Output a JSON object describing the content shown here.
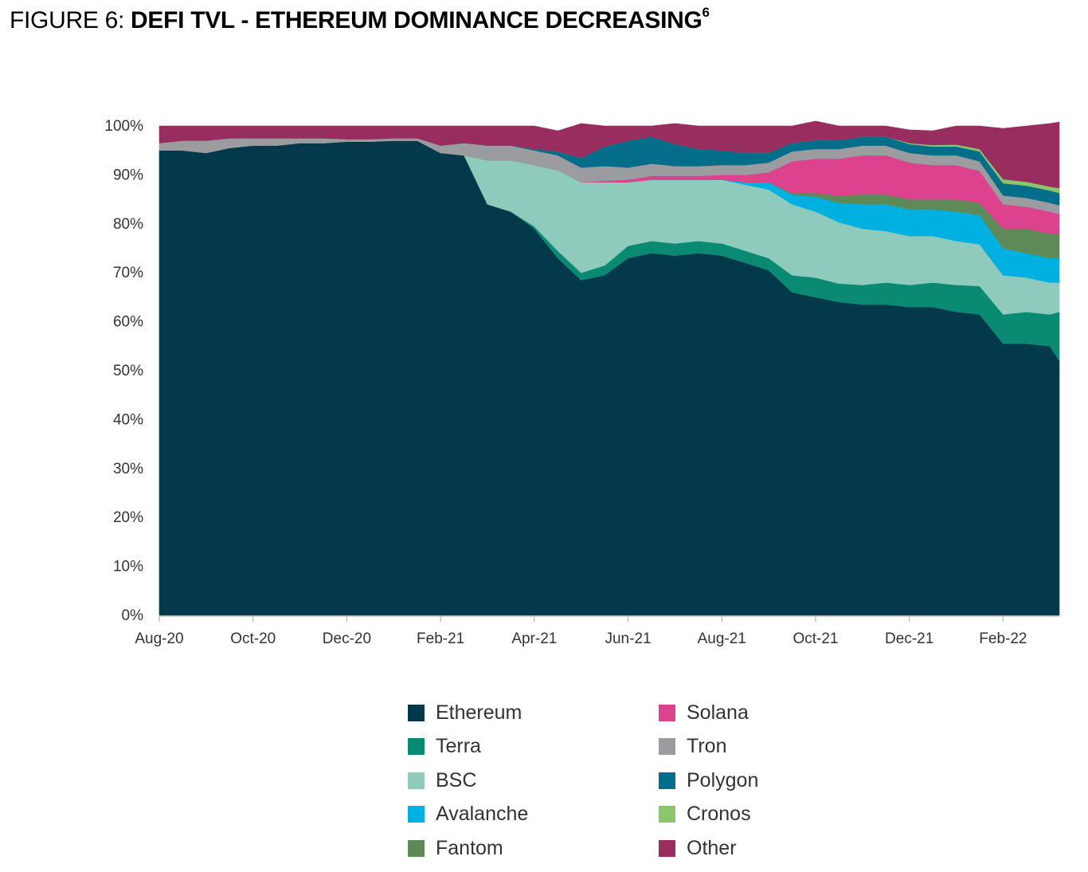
{
  "figure": {
    "prefix": "FIGURE 6: ",
    "title": "DEFI TVL - ETHEREUM DOMINANCE DECREASING",
    "footnote": "6"
  },
  "chart_data": {
    "type": "area",
    "stacked": true,
    "normalized": true,
    "title": "DEFI TVL - ETHEREUM DOMINANCE DECREASING",
    "ylabel": "",
    "xlabel": "",
    "ylim": [
      0,
      100
    ],
    "y_ticks": [
      "0%",
      "10%",
      "20%",
      "30%",
      "40%",
      "50%",
      "60%",
      "70%",
      "80%",
      "90%",
      "100%"
    ],
    "x_ticks": [
      "Aug-20",
      "Oct-20",
      "Dec-20",
      "Feb-21",
      "Apr-21",
      "Jun-21",
      "Aug-21",
      "Oct-21",
      "Dec-21",
      "Feb-22"
    ],
    "x_months_span": [
      0,
      19.2
    ],
    "x": [
      0,
      0.5,
      1,
      1.5,
      2,
      2.5,
      3,
      3.5,
      4,
      4.5,
      5,
      5.5,
      6,
      6.5,
      7,
      7.5,
      8,
      8.5,
      9,
      9.5,
      10,
      10.5,
      11,
      11.5,
      12,
      12.5,
      13,
      13.5,
      14,
      14.5,
      15,
      15.5,
      16,
      16.5,
      17,
      17.5,
      18,
      18.5,
      19,
      19.2
    ],
    "series": [
      {
        "name": "Ethereum",
        "color": "#04394b",
        "values": [
          95,
          95,
          94.5,
          95.5,
          96,
          96,
          96.5,
          96.5,
          96.8,
          96.8,
          97,
          97,
          94.5,
          94,
          84,
          82.5,
          79,
          73,
          68.5,
          69.5,
          73,
          74,
          73.5,
          74,
          73.5,
          72,
          70.5,
          66,
          65,
          64,
          63.5,
          63.5,
          63,
          63,
          62,
          61.5,
          55.5,
          55.5,
          55,
          52
        ]
      },
      {
        "name": "Terra",
        "color": "#0a8a73",
        "values": [
          0,
          0,
          0,
          0,
          0,
          0,
          0,
          0,
          0,
          0,
          0,
          0,
          0,
          0,
          0,
          0,
          0.5,
          1.5,
          1.5,
          2,
          2.5,
          2.5,
          2.5,
          2.5,
          2.5,
          2.5,
          2.5,
          3.5,
          4,
          3.8,
          4,
          4.5,
          4.5,
          5,
          5.5,
          5.8,
          6,
          6.5,
          6.5,
          10
        ]
      },
      {
        "name": "BSC",
        "color": "#8fcbbd",
        "values": [
          0,
          0,
          0,
          0,
          0,
          0,
          0,
          0,
          0,
          0,
          0,
          0,
          0,
          0,
          9,
          10.5,
          12.5,
          16.5,
          18.5,
          17,
          13,
          12.5,
          13,
          12.5,
          13,
          13.5,
          14,
          14.5,
          13.5,
          12.5,
          11.5,
          10.5,
          10,
          9.5,
          9,
          8.5,
          8,
          7,
          6.5,
          6
        ]
      },
      {
        "name": "Avalanche",
        "color": "#00b0e0",
        "values": [
          0,
          0,
          0,
          0,
          0,
          0,
          0,
          0,
          0,
          0,
          0,
          0,
          0,
          0,
          0,
          0,
          0,
          0,
          0,
          0,
          0,
          0,
          0,
          0,
          0,
          0.5,
          1.5,
          2,
          3,
          4,
          5,
          5.5,
          5.5,
          5.5,
          6,
          6,
          5.5,
          5,
          5,
          5
        ]
      },
      {
        "name": "Fantom",
        "color": "#5d8a57",
        "values": [
          0,
          0,
          0,
          0,
          0,
          0,
          0,
          0,
          0,
          0,
          0,
          0,
          0,
          0,
          0,
          0,
          0,
          0,
          0,
          0,
          0,
          0,
          0,
          0,
          0,
          0,
          0,
          0.3,
          0.8,
          1.5,
          2,
          2,
          2,
          2,
          2.5,
          2.5,
          4,
          5,
          5,
          5
        ]
      },
      {
        "name": "Solana",
        "color": "#dc428d",
        "values": [
          0,
          0,
          0,
          0,
          0,
          0,
          0,
          0,
          0,
          0,
          0,
          0,
          0,
          0,
          0,
          0,
          0,
          0,
          0,
          0.3,
          0.5,
          0.8,
          0.8,
          0.8,
          1,
          1.5,
          2,
          6.5,
          7,
          7.5,
          8,
          8,
          7.5,
          7,
          7,
          6.5,
          5,
          4.5,
          4.5,
          4
        ]
      },
      {
        "name": "Tron",
        "color": "#9a9c9f",
        "values": [
          1.5,
          2,
          2.5,
          2,
          1.5,
          1.5,
          1,
          1,
          0.5,
          0.5,
          0.5,
          0.5,
          1.5,
          2.5,
          3,
          3,
          3,
          3,
          3,
          3,
          2.5,
          2.5,
          2,
          2,
          2,
          2,
          2,
          2,
          2,
          2,
          2,
          2,
          2,
          2,
          2,
          2,
          1.8,
          1.8,
          1.8,
          1.8
        ]
      },
      {
        "name": "Polygon",
        "color": "#036d8a",
        "values": [
          0,
          0,
          0,
          0,
          0,
          0,
          0,
          0,
          0,
          0,
          0,
          0,
          0,
          0,
          0,
          0,
          0.3,
          0.8,
          2,
          4,
          5.5,
          5.5,
          4.5,
          3.5,
          3,
          2.5,
          2,
          1.8,
          1.8,
          1.8,
          1.8,
          1.8,
          1.8,
          1.8,
          1.8,
          2,
          2.5,
          2.5,
          2.5,
          2.5
        ]
      },
      {
        "name": "Cronos",
        "color": "#8cc66b",
        "values": [
          0,
          0,
          0,
          0,
          0,
          0,
          0,
          0,
          0,
          0,
          0,
          0,
          0,
          0,
          0,
          0,
          0,
          0,
          0,
          0,
          0,
          0,
          0,
          0,
          0,
          0,
          0,
          0,
          0,
          0,
          0,
          0,
          0.2,
          0.3,
          0.4,
          0.5,
          0.8,
          0.8,
          0.8,
          1
        ]
      },
      {
        "name": "Other",
        "color": "#982e60",
        "values": [
          3.5,
          3,
          3,
          2.5,
          2.5,
          2.5,
          2.5,
          2.5,
          2.7,
          2.7,
          2.5,
          2.5,
          4,
          3.5,
          4,
          4,
          4.7,
          4.2,
          7,
          4.2,
          3,
          2.2,
          4.2,
          4.7,
          5,
          5.5,
          5.5,
          3.4,
          3.9,
          2.9,
          2.2,
          2.2,
          2.7,
          2.9,
          3.8,
          4.7,
          10.4,
          11.4,
          12.9,
          13.5
        ]
      }
    ],
    "legend": {
      "placement": "bottom",
      "left_column": [
        "Ethereum",
        "Terra",
        "BSC",
        "Avalanche",
        "Fantom"
      ],
      "right_column": [
        "Solana",
        "Tron",
        "Polygon",
        "Cronos",
        "Other"
      ]
    }
  }
}
